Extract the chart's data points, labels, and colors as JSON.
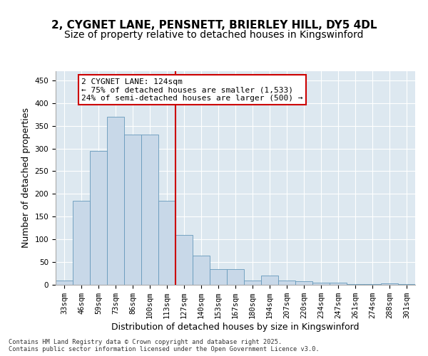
{
  "title_line1": "2, CYGNET LANE, PENSNETT, BRIERLEY HILL, DY5 4DL",
  "title_line2": "Size of property relative to detached houses in Kingswinford",
  "xlabel": "Distribution of detached houses by size in Kingswinford",
  "ylabel": "Number of detached properties",
  "bins": [
    "33sqm",
    "46sqm",
    "59sqm",
    "73sqm",
    "86sqm",
    "100sqm",
    "113sqm",
    "127sqm",
    "140sqm",
    "153sqm",
    "167sqm",
    "180sqm",
    "194sqm",
    "207sqm",
    "220sqm",
    "234sqm",
    "247sqm",
    "261sqm",
    "274sqm",
    "288sqm",
    "301sqm"
  ],
  "values": [
    10,
    185,
    295,
    370,
    330,
    330,
    185,
    110,
    65,
    35,
    35,
    10,
    20,
    10,
    8,
    5,
    5,
    1,
    1,
    3,
    1
  ],
  "bar_color": "#c8d8e8",
  "bar_edge_color": "#6699bb",
  "vline_x": 6.5,
  "annotation_text": "2 CYGNET LANE: 124sqm\n← 75% of detached houses are smaller (1,533)\n24% of semi-detached houses are larger (500) →",
  "annotation_box_color": "#ffffff",
  "annotation_border_color": "#cc0000",
  "vline_color": "#cc0000",
  "yticks": [
    0,
    50,
    100,
    150,
    200,
    250,
    300,
    350,
    400,
    450
  ],
  "ylim": [
    0,
    470
  ],
  "background_color": "#dde8f0",
  "footer_text": "Contains HM Land Registry data © Crown copyright and database right 2025.\nContains public sector information licensed under the Open Government Licence v3.0.",
  "title_fontsize": 11,
  "subtitle_fontsize": 10,
  "axis_label_fontsize": 9,
  "tick_fontsize": 7.5,
  "annotation_fontsize": 8
}
